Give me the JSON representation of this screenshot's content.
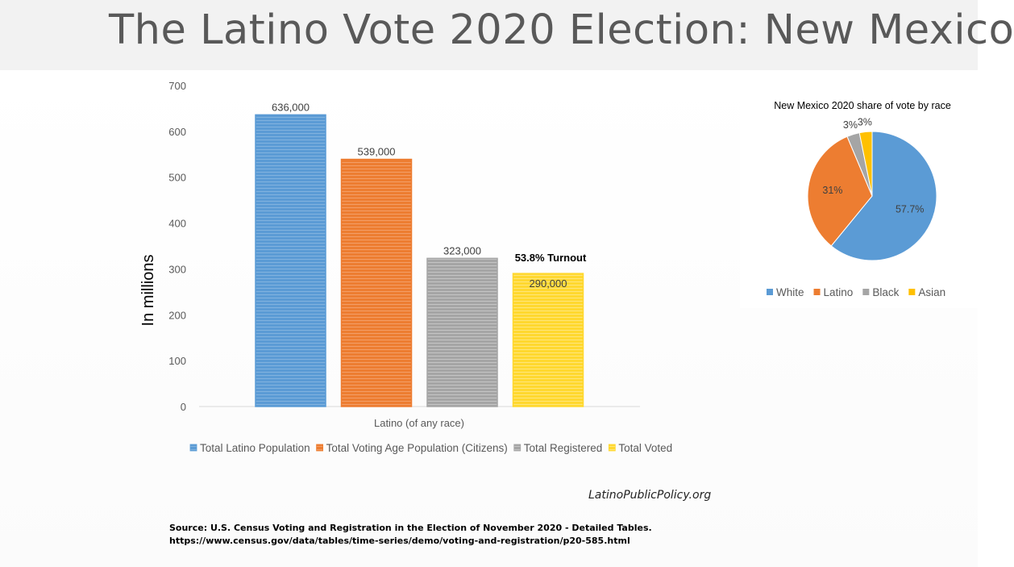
{
  "page": {
    "title": "The Latino Vote 2020 Election: New Mexico",
    "credit": "LatinoPublicPolicy.org",
    "source_line1": "Source: U.S. Census  Voting and Registration in the Election of November 2020 - Detailed Tables.",
    "source_line2": "https://www.census.gov/data/tables/time-series/demo/voting-and-registration/p20-585.html"
  },
  "chart_data": [
    {
      "type": "bar",
      "title": "",
      "xlabel": "",
      "ylabel": "In millions",
      "ylim": [
        0,
        700
      ],
      "yticks": [
        0,
        100,
        200,
        300,
        400,
        500,
        600,
        700
      ],
      "grid": false,
      "legend_position": "bottom",
      "categories": [
        "Latino (of any race)"
      ],
      "series": [
        {
          "name": "Total Latino Population",
          "values": [
            636
          ],
          "label": "636,000",
          "color": "#5b9bd5"
        },
        {
          "name": "Total Voting Age Population (Citizens)",
          "values": [
            539
          ],
          "label": "539,000",
          "color": "#ed7d31"
        },
        {
          "name": "Total Registered",
          "values": [
            323
          ],
          "label": "323,000",
          "color": "#a5a5a5"
        },
        {
          "name": "Total Voted",
          "values": [
            290
          ],
          "label": "290,000",
          "color": "#ffd82f"
        }
      ],
      "annotation": "53.8% Turnout"
    },
    {
      "type": "pie",
      "title": "New Mexico 2020 share of vote by race",
      "legend_position": "bottom",
      "slices": [
        {
          "name": "White",
          "value": 57.7,
          "label": "57.7%",
          "color": "#5b9bd5"
        },
        {
          "name": "Latino",
          "value": 31,
          "label": "31%",
          "color": "#ed7d31"
        },
        {
          "name": "Black",
          "value": 3,
          "label": "3%",
          "color": "#a5a5a5"
        },
        {
          "name": "Asian",
          "value": 3,
          "label": "3%",
          "color": "#ffc000"
        }
      ]
    }
  ]
}
